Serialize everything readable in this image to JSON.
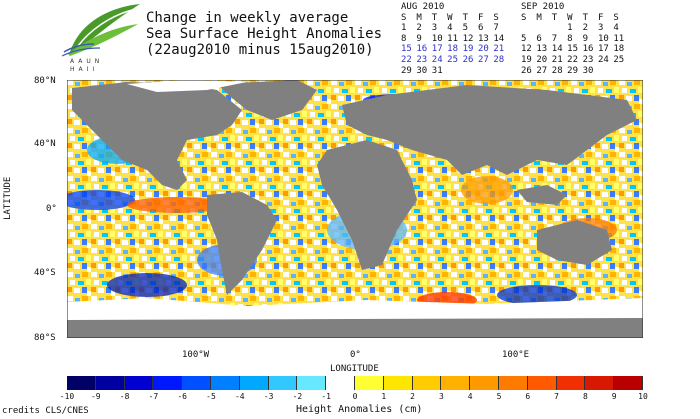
{
  "header": {
    "title_lines": [
      "Change in weekly average",
      "Sea Surface Height Anomalies",
      "(22aug2010 minus 15aug2010)"
    ],
    "logo_text": "AAUN HAII"
  },
  "calendars": [
    {
      "month": "AUG 2010",
      "days_header": [
        "S",
        "M",
        "T",
        "W",
        "T",
        "F",
        "S"
      ],
      "weeks": [
        [
          "1",
          "2",
          "3",
          "4",
          "5",
          "6",
          "7"
        ],
        [
          "8",
          "9",
          "10",
          "11",
          "12",
          "13",
          "14"
        ],
        [
          "15",
          "16",
          "17",
          "18",
          "19",
          "20",
          "21"
        ],
        [
          "22",
          "23",
          "24",
          "25",
          "26",
          "27",
          "28"
        ],
        [
          "29",
          "30",
          "31",
          "",
          "",
          "",
          ""
        ]
      ],
      "highlight_weeks": [
        2,
        3
      ]
    },
    {
      "month": "SEP 2010",
      "days_header": [
        "S",
        "M",
        "T",
        "W",
        "T",
        "F",
        "S"
      ],
      "weeks": [
        [
          "",
          "",
          "",
          "1",
          "2",
          "3",
          "4"
        ],
        [
          "5",
          "6",
          "7",
          "8",
          "9",
          "10",
          "11"
        ],
        [
          "12",
          "13",
          "14",
          "15",
          "16",
          "17",
          "18"
        ],
        [
          "19",
          "20",
          "21",
          "22",
          "23",
          "24",
          "25"
        ],
        [
          "26",
          "27",
          "28",
          "29",
          "30",
          "",
          ""
        ]
      ],
      "highlight_weeks": []
    }
  ],
  "map": {
    "y_axis_label": "LATITUDE",
    "x_axis_label": "LONGITUDE",
    "y_ticks": [
      "80°N",
      "40°N",
      "0°",
      "40°S",
      "80°S"
    ],
    "x_ticks": [
      "100°W",
      "0°",
      "100°E"
    ],
    "land_color": "#808080",
    "ice_color": "#ffffff"
  },
  "colorbar": {
    "title": "Height Anomalies (cm)",
    "labels": [
      "-10",
      "-9",
      "-8",
      "-7",
      "-6",
      "-5",
      "-4",
      "-3",
      "-2",
      "-1",
      "0",
      "1",
      "2",
      "3",
      "4",
      "5",
      "6",
      "7",
      "8",
      "9",
      "10"
    ],
    "colors": [
      "#000066",
      "#0000a0",
      "#0000d0",
      "#0018ff",
      "#0050ff",
      "#0080ff",
      "#00a8ff",
      "#30c8ff",
      "#66e8ff",
      "#ffffff",
      "#ffff33",
      "#ffe600",
      "#ffcc00",
      "#ffb000",
      "#ff9900",
      "#ff7a00",
      "#ff5a00",
      "#f03000",
      "#d81800",
      "#b80000"
    ]
  },
  "footer": {
    "credits": "credits CLS/CNES"
  }
}
